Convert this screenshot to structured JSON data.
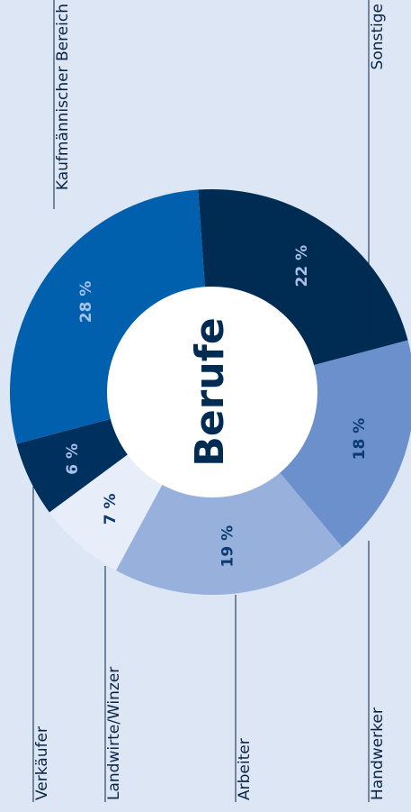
{
  "chart_data": {
    "type": "pie",
    "title": "Berufe",
    "categories": [
      "Sonstige",
      "Handwerker",
      "Arbeiter",
      "Landwirte/Winzer",
      "Verkäufer",
      "Kaufmännischer Bereich"
    ],
    "values": [
      22,
      18,
      19,
      7,
      6,
      28
    ],
    "value_labels": [
      "22 %",
      "18 %",
      "19 %",
      "7 %",
      "6 %",
      "28 %"
    ],
    "colors": [
      "#002b52",
      "#6b90cc",
      "#97b0dc",
      "#e8eef9",
      "#00305e",
      "#0060ae"
    ]
  }
}
